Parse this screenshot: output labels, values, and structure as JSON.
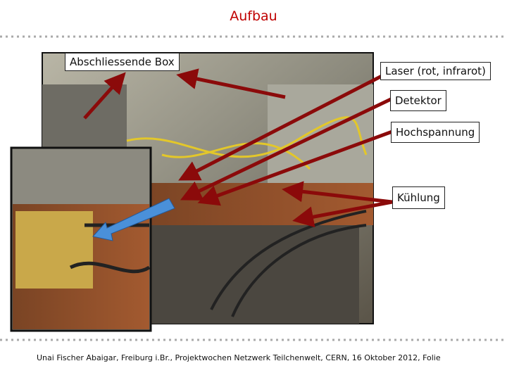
{
  "slide": {
    "title": "Aufbau",
    "labels": [
      "Abschliessende Box",
      "Laser (rot, infrarot)",
      "Detektor",
      "Hochspannung",
      "Kühlung"
    ],
    "footer": "Unai Fischer Abaigar, Freiburg i.Br., Projektwochen Netzwerk Teilchenwelt, CERN, 16 Oktober 2012, Folie"
  }
}
